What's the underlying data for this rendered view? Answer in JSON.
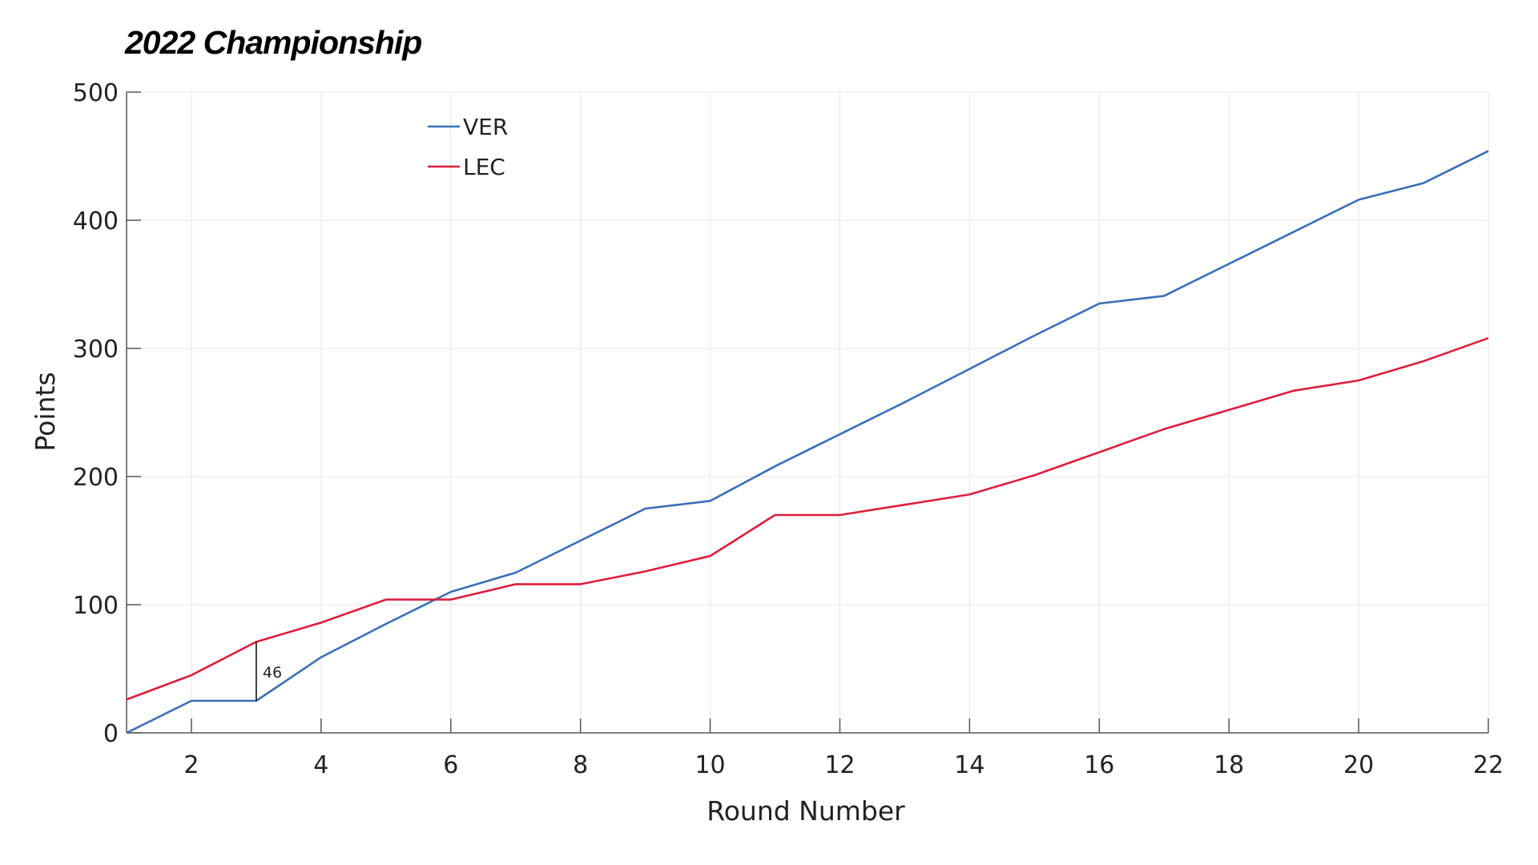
{
  "chart_data": {
    "type": "line",
    "title": "2022 Championship",
    "xlabel": "Round Number",
    "ylabel": "Points",
    "xlim": [
      1,
      22
    ],
    "ylim": [
      0,
      500
    ],
    "xticks": [
      2,
      4,
      6,
      8,
      10,
      12,
      14,
      16,
      18,
      20,
      22
    ],
    "yticks": [
      0,
      100,
      200,
      300,
      400,
      500
    ],
    "grid": true,
    "legend_position": "top-left",
    "x": [
      1,
      2,
      3,
      4,
      5,
      6,
      7,
      8,
      9,
      10,
      11,
      12,
      13,
      14,
      15,
      16,
      17,
      18,
      19,
      20,
      21,
      22
    ],
    "series": [
      {
        "name": "VER",
        "color": "#3a6fb5",
        "values": [
          0,
          25,
          25,
          59,
          85,
          110,
          125,
          150,
          175,
          181,
          208,
          233,
          258,
          284,
          310,
          335,
          341,
          366,
          391,
          416,
          429,
          454
        ]
      },
      {
        "name": "LEC",
        "color": "#dc1e3c",
        "values": [
          26,
          45,
          71,
          86,
          104,
          104,
          116,
          116,
          126,
          138,
          170,
          170,
          178,
          186,
          201,
          219,
          237,
          252,
          267,
          275,
          290,
          308
        ]
      }
    ],
    "annotations": [
      {
        "x": 3,
        "y_from": 25,
        "y_to": 71,
        "label": "46"
      }
    ]
  }
}
